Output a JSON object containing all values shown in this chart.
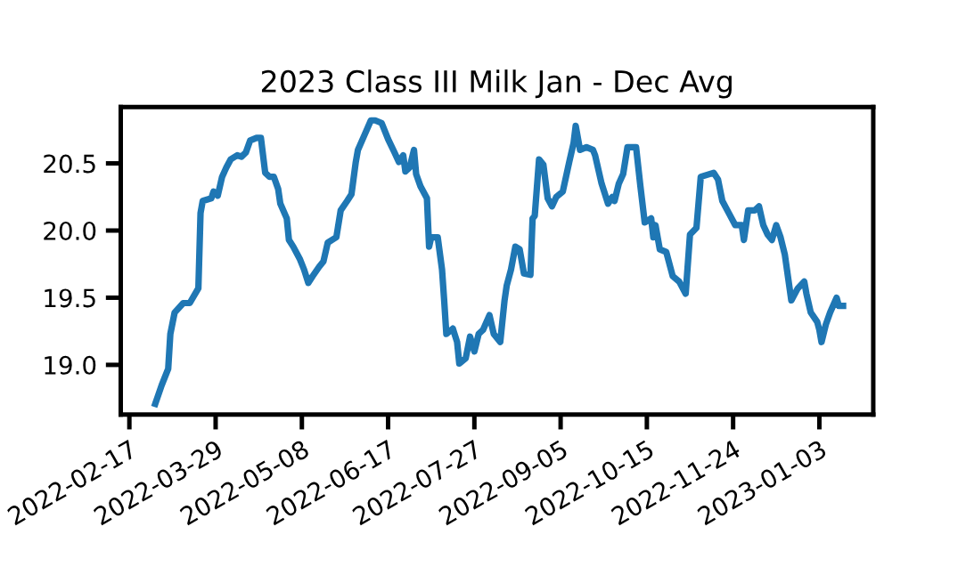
{
  "chart_data": {
    "type": "line",
    "title": "2023 Class III Milk Jan - Dec Avg",
    "x": [
      "2022-03-01",
      "2022-03-04",
      "2022-03-07",
      "2022-03-08",
      "2022-03-10",
      "2022-03-14",
      "2022-03-17",
      "2022-03-21",
      "2022-03-22",
      "2022-03-23",
      "2022-03-27",
      "2022-03-28",
      "2022-03-30",
      "2022-04-01",
      "2022-04-03",
      "2022-04-05",
      "2022-04-08",
      "2022-04-10",
      "2022-04-12",
      "2022-04-14",
      "2022-04-17",
      "2022-04-19",
      "2022-04-21",
      "2022-04-23",
      "2022-04-25",
      "2022-04-27",
      "2022-04-28",
      "2022-05-01",
      "2022-05-02",
      "2022-05-04",
      "2022-05-07",
      "2022-05-09",
      "2022-05-11",
      "2022-05-13",
      "2022-05-16",
      "2022-05-18",
      "2022-05-20",
      "2022-05-23",
      "2022-05-24",
      "2022-05-26",
      "2022-05-29",
      "2022-05-31",
      "2022-06-02",
      "2022-06-03",
      "2022-06-06",
      "2022-06-09",
      "2022-06-11",
      "2022-06-14",
      "2022-06-17",
      "2022-06-20",
      "2022-06-22",
      "2022-06-24",
      "2022-06-25",
      "2022-06-27",
      "2022-06-29",
      "2022-06-30",
      "2022-07-02",
      "2022-07-05",
      "2022-07-06",
      "2022-07-07",
      "2022-07-10",
      "2022-07-12",
      "2022-07-13",
      "2022-07-14",
      "2022-07-17",
      "2022-07-19",
      "2022-07-20",
      "2022-07-23",
      "2022-07-25",
      "2022-07-27",
      "2022-07-29",
      "2022-07-31",
      "2022-08-03",
      "2022-08-05",
      "2022-08-08",
      "2022-08-10",
      "2022-08-11",
      "2022-08-13",
      "2022-08-15",
      "2022-08-17",
      "2022-08-19",
      "2022-08-22",
      "2022-08-23",
      "2022-08-24",
      "2022-08-26",
      "2022-08-28",
      "2022-08-30",
      "2022-09-01",
      "2022-09-03",
      "2022-09-06",
      "2022-09-09",
      "2022-09-11",
      "2022-09-12",
      "2022-09-14",
      "2022-09-17",
      "2022-09-20",
      "2022-09-21",
      "2022-09-24",
      "2022-09-27",
      "2022-09-29",
      "2022-09-30",
      "2022-10-02",
      "2022-10-04",
      "2022-10-06",
      "2022-10-10",
      "2022-10-12",
      "2022-10-14",
      "2022-10-17",
      "2022-10-18",
      "2022-10-19",
      "2022-10-21",
      "2022-10-24",
      "2022-10-27",
      "2022-10-30",
      "2022-11-02",
      "2022-11-04",
      "2022-11-07",
      "2022-11-09",
      "2022-11-13",
      "2022-11-15",
      "2022-11-17",
      "2022-11-19",
      "2022-11-22",
      "2022-11-25",
      "2022-11-28",
      "2022-11-29",
      "2022-12-01",
      "2022-12-04",
      "2022-12-06",
      "2022-12-08",
      "2022-12-10",
      "2022-12-12",
      "2022-12-14",
      "2022-12-16",
      "2022-12-18",
      "2022-12-21",
      "2022-12-24",
      "2022-12-27",
      "2022-12-28",
      "2022-12-30",
      "2023-01-02",
      "2023-01-03",
      "2023-01-04",
      "2023-01-06",
      "2023-01-08",
      "2023-01-11",
      "2023-01-12",
      "2023-01-14"
    ],
    "series": [
      {
        "color": "#1f77b4",
        "values": [
          18.71,
          18.85,
          18.97,
          19.23,
          19.39,
          19.46,
          19.46,
          19.57,
          20.13,
          20.22,
          20.24,
          20.29,
          20.26,
          20.4,
          20.47,
          20.53,
          20.56,
          20.55,
          20.58,
          20.67,
          20.69,
          20.69,
          20.43,
          20.4,
          20.4,
          20.31,
          20.2,
          20.09,
          19.93,
          19.88,
          19.79,
          19.71,
          19.61,
          19.66,
          19.73,
          19.77,
          19.91,
          19.94,
          19.95,
          20.15,
          20.22,
          20.27,
          20.51,
          20.6,
          20.71,
          20.82,
          20.82,
          20.8,
          20.68,
          20.58,
          20.51,
          20.56,
          20.44,
          20.47,
          20.6,
          20.42,
          20.33,
          20.24,
          19.88,
          19.95,
          19.95,
          19.71,
          19.48,
          19.23,
          19.27,
          19.17,
          19.01,
          19.05,
          19.21,
          19.1,
          19.23,
          19.26,
          19.37,
          19.23,
          19.17,
          19.48,
          19.59,
          19.71,
          19.88,
          19.86,
          19.68,
          19.67,
          20.09,
          20.11,
          20.53,
          20.49,
          20.24,
          20.18,
          20.25,
          20.29,
          20.51,
          20.65,
          20.78,
          20.6,
          20.62,
          20.6,
          20.56,
          20.35,
          20.2,
          20.25,
          20.22,
          20.35,
          20.42,
          20.62,
          20.62,
          20.33,
          20.06,
          20.09,
          19.95,
          20.04,
          19.86,
          19.84,
          19.66,
          19.62,
          19.53,
          19.97,
          20.02,
          20.4,
          20.42,
          20.43,
          20.38,
          20.22,
          20.13,
          20.04,
          20.04,
          19.93,
          20.15,
          20.15,
          20.18,
          20.04,
          19.97,
          19.93,
          20.04,
          19.95,
          19.82,
          19.48,
          19.57,
          19.62,
          19.53,
          19.39,
          19.32,
          19.26,
          19.17,
          19.3,
          19.39,
          19.5,
          19.44,
          19.44
        ]
      }
    ],
    "xlim": [
      "2022-02-13",
      "2023-01-28"
    ],
    "xticks": [
      "2022-02-17",
      "2022-03-29",
      "2022-05-08",
      "2022-06-17",
      "2022-07-27",
      "2022-09-05",
      "2022-10-15",
      "2022-11-24",
      "2023-01-03"
    ],
    "ylim": [
      18.63,
      20.92
    ],
    "yticks": [
      {
        "value": 19.0,
        "label": "19.0"
      },
      {
        "value": 19.5,
        "label": "19.5"
      },
      {
        "value": 20.0,
        "label": "20.0"
      },
      {
        "value": 20.5,
        "label": "20.5"
      }
    ],
    "grid": false,
    "marker": "none",
    "line_style": "solid"
  }
}
